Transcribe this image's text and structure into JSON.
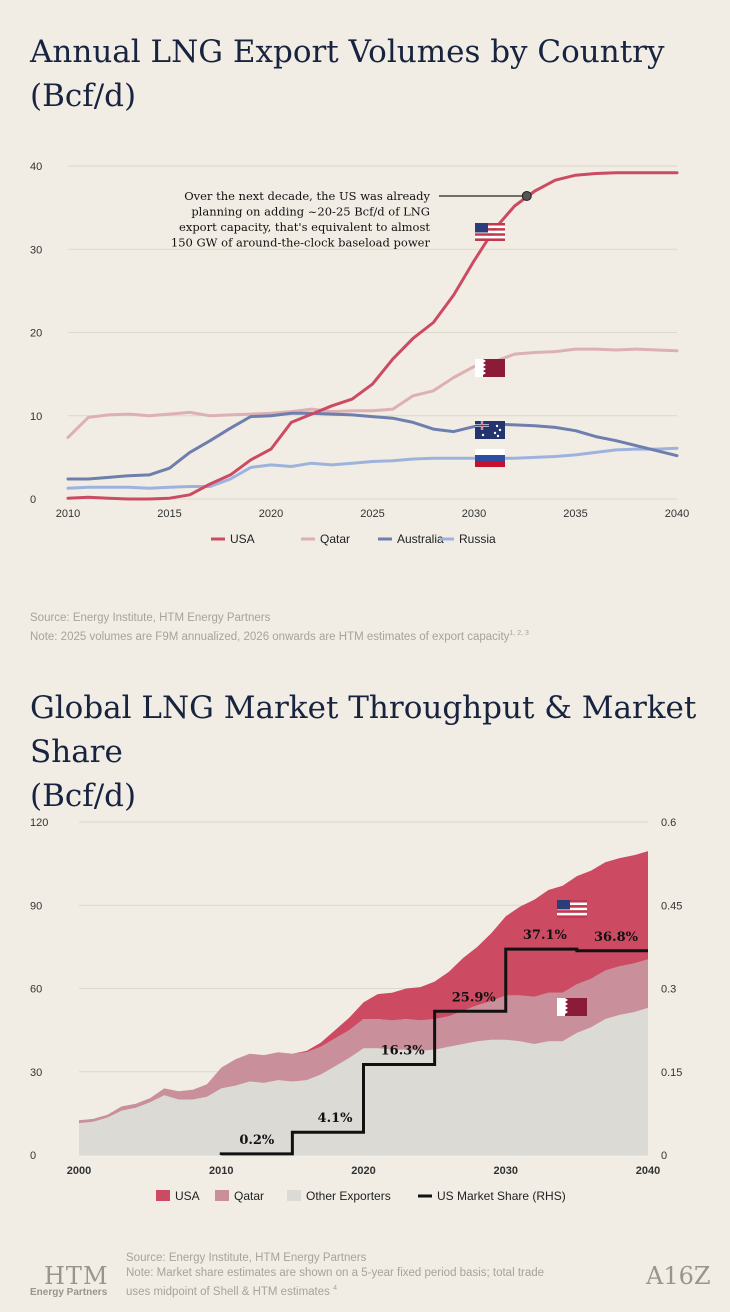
{
  "chart1": {
    "title_line1": "Annual LNG Export Volumes by Country",
    "title_line2": "(Bcf/d)",
    "annotation": [
      "Over the next decade, the US was already",
      "planning on adding ~20-25 Bcf/d of LNG",
      "export capacity, that's equivalent to almost",
      "150 GW of around-the-clock baseload power"
    ],
    "source": "Source: Energy Institute, HTM Energy Partners",
    "note": "Note: 2025 volumes are F9M annualized, 2026 onwards are HTM estimates of export capacity",
    "note_refs": "1, 2, 3"
  },
  "chart2": {
    "title_line1": "Global LNG Market Throughput & Market Share",
    "title_line2": "(Bcf/d)",
    "source": "Source: Energy Institute, HTM Energy Partners",
    "note_line1": "Note: Market share estimates are shown on a 5-year fixed period basis; total trade",
    "note_line2": "uses midpoint of Shell & HTM estimates",
    "note_ref": "4"
  },
  "logos": {
    "htm_big": "HTM",
    "htm_small": "Energy Partners",
    "a16z": "A16Z"
  },
  "colors": {
    "usa": "#cc4b62",
    "qatar": "#c98f9a",
    "qatar_light": "#ddb0b4",
    "australia": "#6e7fae",
    "russia": "#9db3de",
    "other": "#dcdad5",
    "share": "#111111",
    "text_dark": "#17233f"
  },
  "chart_data": [
    {
      "type": "line",
      "xlim": [
        2010,
        2040
      ],
      "ylim": [
        0,
        40
      ],
      "xticks": [
        2010,
        2015,
        2020,
        2025,
        2030,
        2035,
        2040
      ],
      "yticks": [
        0,
        10,
        20,
        30,
        40
      ],
      "grid": true,
      "legend_position": "bottom",
      "series": [
        {
          "name": "USA",
          "color": "#cc4b62",
          "x": [
            2010,
            2011,
            2012,
            2013,
            2014,
            2015,
            2016,
            2017,
            2018,
            2019,
            2020,
            2021,
            2022,
            2023,
            2024,
            2025,
            2026,
            2027,
            2028,
            2029,
            2030,
            2031,
            2032,
            2033,
            2034,
            2035,
            2036,
            2037,
            2038,
            2039,
            2040
          ],
          "y": [
            0.1,
            0.2,
            0.1,
            0.0,
            0.0,
            0.1,
            0.5,
            1.8,
            2.9,
            4.7,
            6.0,
            9.2,
            10.2,
            11.2,
            12.0,
            13.8,
            16.8,
            19.3,
            21.2,
            24.5,
            28.6,
            32.4,
            35.2,
            37.0,
            38.3,
            38.9,
            39.1,
            39.2,
            39.2,
            39.2,
            39.2
          ]
        },
        {
          "name": "Qatar",
          "color": "#ddb0b4",
          "x": [
            2010,
            2011,
            2012,
            2013,
            2014,
            2015,
            2016,
            2017,
            2018,
            2019,
            2020,
            2021,
            2022,
            2023,
            2024,
            2025,
            2026,
            2027,
            2028,
            2029,
            2030,
            2031,
            2032,
            2033,
            2034,
            2035,
            2036,
            2037,
            2038,
            2039,
            2040
          ],
          "y": [
            7.4,
            9.8,
            10.1,
            10.2,
            10.0,
            10.2,
            10.4,
            10.0,
            10.1,
            10.2,
            10.3,
            10.5,
            10.8,
            10.5,
            10.6,
            10.6,
            10.8,
            12.4,
            13.0,
            14.6,
            15.9,
            16.5,
            17.4,
            17.6,
            17.7,
            18.0,
            18.0,
            17.9,
            18.0,
            17.9,
            17.8
          ]
        },
        {
          "name": "Australia",
          "color": "#6e7fae",
          "x": [
            2010,
            2011,
            2012,
            2013,
            2014,
            2015,
            2016,
            2017,
            2018,
            2019,
            2020,
            2021,
            2022,
            2023,
            2024,
            2025,
            2026,
            2027,
            2028,
            2029,
            2030,
            2031,
            2032,
            2033,
            2034,
            2035,
            2036,
            2037,
            2038,
            2039,
            2040
          ],
          "y": [
            2.4,
            2.4,
            2.6,
            2.8,
            2.9,
            3.7,
            5.6,
            7.0,
            8.5,
            9.9,
            10.0,
            10.3,
            10.3,
            10.2,
            10.1,
            9.9,
            9.7,
            9.2,
            8.4,
            8.1,
            8.7,
            9.0,
            8.9,
            8.8,
            8.6,
            8.2,
            7.5,
            7.0,
            6.4,
            5.8,
            5.2
          ]
        },
        {
          "name": "Russia",
          "color": "#9db3de",
          "x": [
            2010,
            2011,
            2012,
            2013,
            2014,
            2015,
            2016,
            2017,
            2018,
            2019,
            2020,
            2021,
            2022,
            2023,
            2024,
            2025,
            2026,
            2027,
            2028,
            2029,
            2030,
            2031,
            2032,
            2033,
            2034,
            2035,
            2036,
            2037,
            2038,
            2039,
            2040
          ],
          "y": [
            1.3,
            1.4,
            1.4,
            1.4,
            1.3,
            1.4,
            1.5,
            1.5,
            2.4,
            3.8,
            4.1,
            3.9,
            4.3,
            4.1,
            4.3,
            4.5,
            4.6,
            4.8,
            4.9,
            4.9,
            4.9,
            4.9,
            4.9,
            5.0,
            5.1,
            5.3,
            5.6,
            5.9,
            6.0,
            6.0,
            6.1
          ]
        }
      ]
    },
    {
      "type": "area",
      "xlim": [
        2000,
        2040
      ],
      "ylim": [
        0,
        120
      ],
      "y2lim": [
        0,
        0.6
      ],
      "xticks": [
        2000,
        2010,
        2020,
        2030,
        2040
      ],
      "yticks": [
        0,
        30,
        60,
        90,
        120
      ],
      "y2ticks": [
        0,
        0.15,
        0.3,
        0.45,
        0.6
      ],
      "y2ticklabels": [
        "0",
        "0.15",
        "0.3",
        "0.45",
        "0.6"
      ],
      "grid": true,
      "legend_position": "bottom",
      "x": [
        2000,
        2001,
        2002,
        2003,
        2004,
        2005,
        2006,
        2007,
        2008,
        2009,
        2010,
        2011,
        2012,
        2013,
        2014,
        2015,
        2016,
        2017,
        2018,
        2019,
        2020,
        2021,
        2022,
        2023,
        2024,
        2025,
        2026,
        2027,
        2028,
        2029,
        2030,
        2031,
        2032,
        2033,
        2034,
        2035,
        2036,
        2037,
        2038,
        2039,
        2040
      ],
      "series": [
        {
          "name": "Other Exporters",
          "color": "#dcdad5",
          "values": [
            11.5,
            12,
            13.5,
            16,
            17,
            19,
            21.5,
            20,
            20,
            21,
            24,
            25,
            26.5,
            26,
            27,
            26.5,
            27,
            29,
            32,
            35,
            38.5,
            38.5,
            38,
            38,
            37.5,
            38,
            39,
            40,
            41,
            41.5,
            41.5,
            41,
            40,
            41,
            41,
            44,
            46,
            49,
            50.5,
            51.5,
            53
          ]
        },
        {
          "name": "Qatar",
          "color": "#c98f9a",
          "values": [
            1,
            1,
            1,
            1.5,
            1.5,
            1.5,
            2.5,
            3,
            3.5,
            4.5,
            7.5,
            9.5,
            10,
            10,
            10,
            10,
            10,
            10,
            10,
            10,
            10.5,
            10.5,
            10.5,
            11,
            11,
            11,
            11,
            12,
            13,
            14,
            16,
            16.5,
            17,
            17.5,
            17.5,
            17.5,
            17.5,
            17.5,
            17.5,
            17.5,
            17.5
          ]
        },
        {
          "name": "USA",
          "color": "#cc4b62",
          "values": [
            0,
            0,
            0,
            0,
            0,
            0,
            0,
            0,
            0,
            0,
            0,
            0,
            0,
            0,
            0,
            0,
            0.5,
            1.5,
            3,
            4.5,
            6,
            9,
            10,
            11,
            12,
            13.5,
            16,
            19,
            21,
            24.5,
            28.5,
            32,
            35,
            37,
            38.5,
            39,
            39,
            39,
            39,
            39,
            39
          ]
        }
      ],
      "share_series": {
        "name": "US Market Share (RHS)",
        "color": "#111111",
        "steps": [
          {
            "x_from": 2010,
            "x_to": 2015,
            "value": 0.002,
            "label": "0.2%"
          },
          {
            "x_from": 2015,
            "x_to": 2020,
            "value": 0.041,
            "label": "4.1%"
          },
          {
            "x_from": 2020,
            "x_to": 2025,
            "value": 0.163,
            "label": "16.3%"
          },
          {
            "x_from": 2025,
            "x_to": 2030,
            "value": 0.259,
            "label": "25.9%"
          },
          {
            "x_from": 2030,
            "x_to": 2035,
            "value": 0.371,
            "label": "37.1%"
          },
          {
            "x_from": 2035,
            "x_to": 2040,
            "value": 0.368,
            "label": "36.8%"
          }
        ]
      }
    }
  ]
}
